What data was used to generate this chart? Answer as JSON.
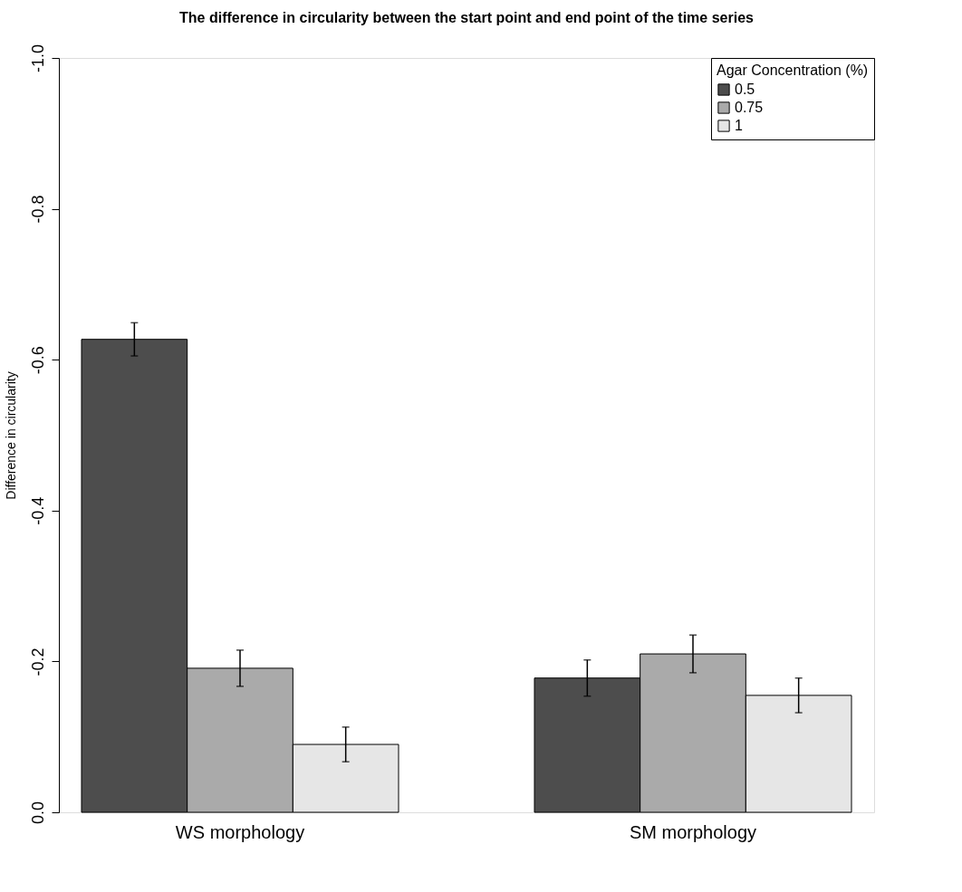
{
  "chart_data": {
    "type": "bar",
    "title": "The difference in circularity between the start point and end point of the time series",
    "ylabel": "Difference in circularity",
    "legend_title": "Agar Concentration (%)",
    "categories": [
      "WS morphology",
      "SM morphology"
    ],
    "series": [
      {
        "name": "0.5",
        "color": "#4d4d4d",
        "values": [
          -0.627,
          -0.178
        ],
        "errors": [
          0.022,
          0.024
        ]
      },
      {
        "name": "0.75",
        "color": "#aaaaaa",
        "values": [
          -0.191,
          -0.21
        ],
        "errors": [
          0.024,
          0.025
        ]
      },
      {
        "name": "1",
        "color": "#e6e6e6",
        "values": [
          -0.09,
          -0.155
        ],
        "errors": [
          0.023,
          0.023
        ]
      }
    ],
    "ylim": [
      0,
      -1
    ],
    "yticks": [
      {
        "value": 0,
        "label": "0.0"
      },
      {
        "value": -0.2,
        "label": "-0.2"
      },
      {
        "value": -0.4,
        "label": "-0.4"
      },
      {
        "value": -0.6,
        "label": "-0.6"
      },
      {
        "value": -0.8,
        "label": "-0.8"
      },
      {
        "value": -1,
        "label": "-1.0"
      }
    ],
    "grid": false,
    "legend": "top right"
  }
}
